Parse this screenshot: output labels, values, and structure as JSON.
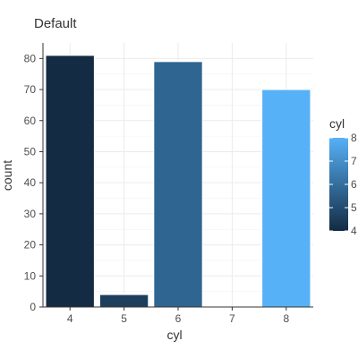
{
  "chart_data": {
    "type": "bar",
    "title": "Default",
    "xlabel": "cyl",
    "ylabel": "count",
    "categories": [
      "4",
      "5",
      "6",
      "7",
      "8"
    ],
    "values": [
      81,
      4,
      79,
      0,
      70
    ],
    "ylim": [
      0,
      85
    ],
    "yticks": [
      0,
      10,
      20,
      30,
      40,
      50,
      60,
      70,
      80
    ],
    "grid": true,
    "colors": [
      "#132B43",
      "#1D3F5D",
      "#2F6591",
      "#3F8BC2",
      "#56B1F7"
    ],
    "legend": {
      "title": "cyl",
      "placement": "right",
      "labels": [
        "8",
        "7",
        "6",
        "5",
        "4"
      ],
      "color_low": "#132B43",
      "color_high": "#56B1F7"
    }
  }
}
